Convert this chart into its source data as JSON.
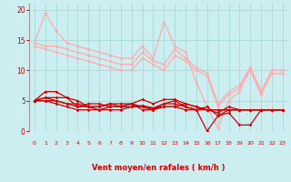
{
  "bg_color": "#cceef0",
  "grid_color": "#aadddd",
  "xlabel": "Vent moyen/en rafales ( km/h )",
  "xlabel_color": "#cc0000",
  "tick_color": "#cc0000",
  "xlim": [
    -0.5,
    23.5
  ],
  "ylim": [
    0,
    21
  ],
  "yticks": [
    0,
    5,
    10,
    15,
    20
  ],
  "xticks": [
    0,
    1,
    2,
    3,
    4,
    5,
    6,
    7,
    8,
    9,
    10,
    11,
    12,
    13,
    14,
    15,
    16,
    17,
    18,
    19,
    20,
    21,
    22,
    23
  ],
  "series": [
    {
      "x": [
        0,
        1,
        2,
        3,
        4,
        5,
        6,
        7,
        8,
        9,
        10,
        11,
        12,
        13,
        14,
        15,
        16,
        17,
        18,
        19,
        20,
        21,
        22,
        23
      ],
      "y": [
        14.5,
        19.5,
        16.5,
        14.5,
        14.0,
        13.5,
        13.0,
        12.5,
        12.0,
        12.0,
        14.0,
        12.0,
        18.0,
        14.0,
        13.0,
        8.0,
        4.0,
        0.5,
        5.0,
        6.5,
        10.5,
        6.5,
        10.0,
        10.0
      ],
      "color": "#ffaaaa",
      "lw": 0.9,
      "marker": "D",
      "ms": 1.8
    },
    {
      "x": [
        0,
        1,
        2,
        3,
        4,
        5,
        6,
        7,
        8,
        9,
        10,
        11,
        12,
        13,
        14,
        15,
        16,
        17,
        18,
        19,
        20,
        21,
        22,
        23
      ],
      "y": [
        14.5,
        14.0,
        14.0,
        13.5,
        13.0,
        12.5,
        12.0,
        11.5,
        11.0,
        11.0,
        13.0,
        11.5,
        11.0,
        13.5,
        12.0,
        10.5,
        9.5,
        4.5,
        6.5,
        7.5,
        10.5,
        6.5,
        10.0,
        10.0
      ],
      "color": "#ffaaaa",
      "lw": 0.9,
      "marker": "D",
      "ms": 1.8
    },
    {
      "x": [
        0,
        1,
        2,
        3,
        4,
        5,
        6,
        7,
        8,
        9,
        10,
        11,
        12,
        13,
        14,
        15,
        16,
        17,
        18,
        19,
        20,
        21,
        22,
        23
      ],
      "y": [
        14.0,
        13.5,
        13.0,
        12.5,
        12.0,
        11.5,
        11.0,
        10.5,
        10.0,
        10.0,
        12.0,
        11.0,
        10.0,
        12.5,
        11.5,
        10.0,
        9.0,
        4.0,
        6.0,
        7.0,
        10.0,
        6.0,
        9.5,
        9.5
      ],
      "color": "#ffaaaa",
      "lw": 0.9,
      "marker": "D",
      "ms": 1.8
    },
    {
      "x": [
        0,
        1,
        2,
        3,
        4,
        5,
        6,
        7,
        8,
        9,
        10,
        11,
        12,
        13,
        14,
        15,
        16,
        17,
        18,
        19,
        20,
        21,
        22,
        23
      ],
      "y": [
        5.0,
        5.0,
        5.0,
        4.5,
        4.0,
        4.0,
        4.0,
        4.5,
        4.0,
        4.5,
        5.2,
        4.5,
        5.2,
        5.2,
        4.5,
        4.0,
        3.5,
        3.0,
        4.0,
        3.5,
        3.5,
        3.5,
        3.5,
        3.5
      ],
      "color": "#cc0000",
      "lw": 0.9,
      "marker": "D",
      "ms": 1.8
    },
    {
      "x": [
        0,
        1,
        2,
        3,
        4,
        5,
        6,
        7,
        8,
        9,
        10,
        11,
        12,
        13,
        14,
        15,
        16,
        17,
        18,
        19,
        20,
        21,
        22,
        23
      ],
      "y": [
        5.0,
        6.5,
        6.5,
        5.5,
        5.0,
        4.0,
        4.0,
        4.5,
        4.5,
        4.5,
        3.5,
        3.5,
        4.5,
        5.0,
        4.0,
        3.5,
        0.0,
        2.5,
        3.0,
        1.0,
        1.0,
        3.5,
        3.5,
        3.5
      ],
      "color": "#cc0000",
      "lw": 0.9,
      "marker": "D",
      "ms": 1.8
    },
    {
      "x": [
        0,
        1,
        2,
        3,
        4,
        5,
        6,
        7,
        8,
        9,
        10,
        11,
        12,
        13,
        14,
        15,
        16,
        17,
        18,
        19,
        20,
        21,
        22,
        23
      ],
      "y": [
        5.0,
        5.5,
        5.5,
        5.5,
        4.0,
        4.5,
        4.5,
        4.0,
        4.0,
        4.0,
        4.2,
        3.8,
        4.5,
        4.5,
        4.0,
        3.5,
        4.0,
        2.5,
        3.5,
        3.5,
        3.5,
        3.5,
        3.5,
        3.5
      ],
      "color": "#cc0000",
      "lw": 0.9,
      "marker": "D",
      "ms": 1.8
    },
    {
      "x": [
        0,
        1,
        2,
        3,
        4,
        5,
        6,
        7,
        8,
        9,
        10,
        11,
        12,
        13,
        14,
        15,
        16,
        17,
        18,
        19,
        20,
        21,
        22,
        23
      ],
      "y": [
        5.0,
        5.5,
        5.0,
        4.5,
        4.5,
        4.0,
        3.5,
        4.0,
        4.0,
        4.5,
        4.0,
        3.8,
        4.0,
        4.0,
        4.5,
        4.0,
        3.5,
        3.5,
        3.5,
        3.5,
        3.5,
        3.5,
        3.5,
        3.5
      ],
      "color": "#cc0000",
      "lw": 0.9,
      "marker": "D",
      "ms": 1.8
    },
    {
      "x": [
        0,
        1,
        2,
        3,
        4,
        5,
        6,
        7,
        8,
        9,
        10,
        11,
        12,
        13,
        14,
        15,
        16,
        17,
        18,
        19,
        20,
        21,
        22,
        23
      ],
      "y": [
        5.0,
        5.0,
        4.5,
        4.0,
        3.5,
        3.5,
        3.5,
        3.5,
        3.5,
        4.0,
        4.0,
        3.5,
        4.0,
        4.0,
        3.5,
        3.5,
        3.5,
        3.5,
        3.5,
        3.5,
        3.5,
        3.5,
        3.5,
        3.5
      ],
      "color": "#cc0000",
      "lw": 0.9,
      "marker": "D",
      "ms": 1.8
    }
  ],
  "arrows": [
    "↖",
    "↑",
    "↖",
    "↖",
    "↖",
    "↖",
    "↖",
    "↖",
    "↖",
    "↑",
    "↖",
    "↑",
    "↖",
    "↑",
    "↖",
    "↗",
    "↓",
    "↓",
    "↗",
    "↓",
    "↖",
    "↓",
    "↖",
    "↖"
  ]
}
